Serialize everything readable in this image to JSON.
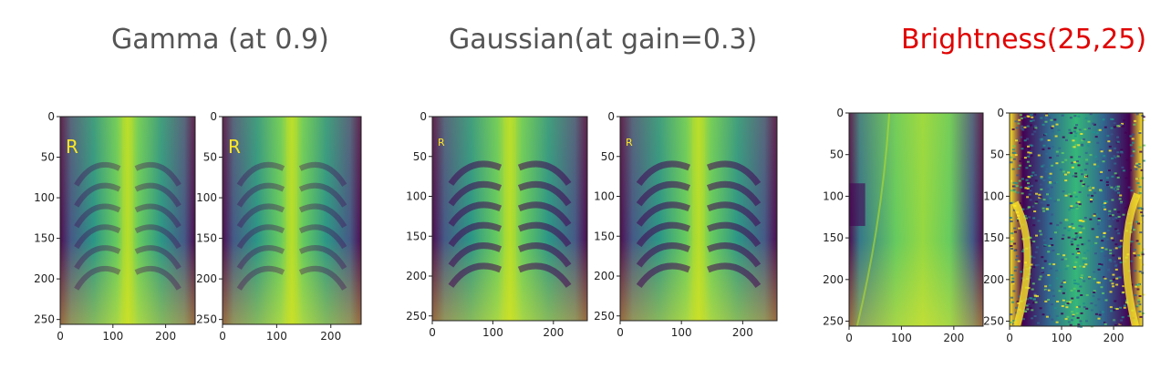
{
  "titles": {
    "gamma": "Gamma  (at 0.9)",
    "gaussian": "Gaussian(at gain=0.3)",
    "brightness": "Brightness(25,25)"
  },
  "colors": {
    "title_gray": "#555555",
    "title_red": "#e00000",
    "viridis_dark": "#440154",
    "viridis_mid": "#21918c",
    "viridis_bright": "#fde725"
  },
  "image_labels": {
    "marker_r": "R"
  },
  "axis": {
    "y_ticks": [
      "0",
      "50",
      "100",
      "150",
      "200",
      "250"
    ],
    "x_ticks": [
      "0",
      "100",
      "200"
    ]
  }
}
